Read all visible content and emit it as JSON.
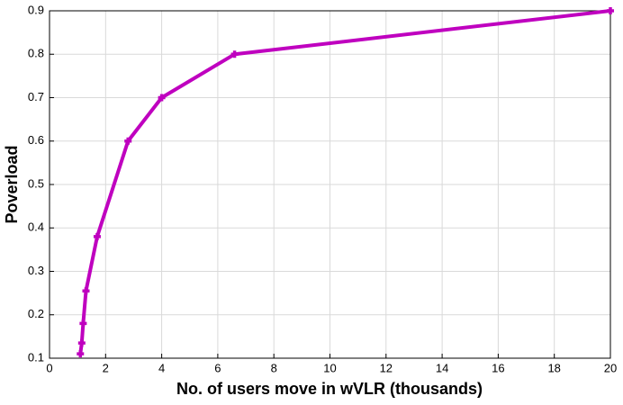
{
  "chart_data": {
    "type": "line",
    "xlabel": "No. of users move in wVLR (thousands)",
    "ylabel": "Poverload",
    "x": [
      1.1,
      1.15,
      1.2,
      1.3,
      1.7,
      2.8,
      4,
      6.6,
      20
    ],
    "series": [
      {
        "color": "#bf00bf",
        "values": [
          0.11,
          0.135,
          0.18,
          0.255,
          0.38,
          0.6,
          0.7,
          0.8,
          0.9
        ]
      }
    ],
    "xlim": [
      0,
      20
    ],
    "xticks": [
      0,
      2,
      4,
      6,
      8,
      10,
      12,
      14,
      16,
      18,
      20
    ],
    "ylim": [
      0.1,
      0.9
    ],
    "yticks": [
      0.1,
      0.2,
      0.3,
      0.4,
      0.5,
      0.6,
      0.7,
      0.8,
      0.9
    ],
    "grid": true
  }
}
